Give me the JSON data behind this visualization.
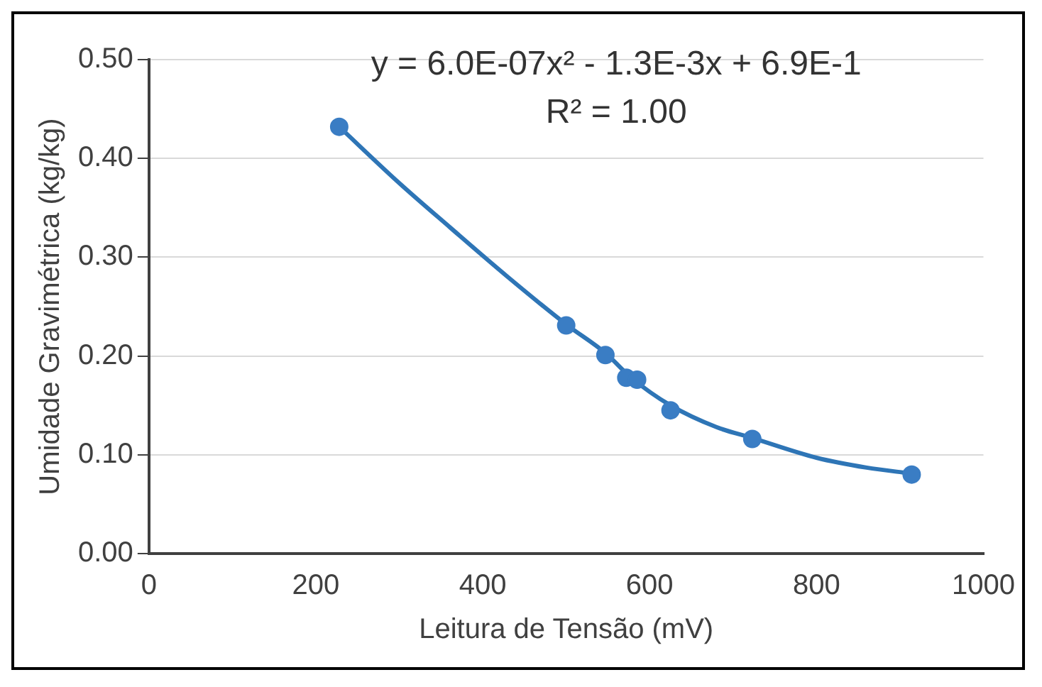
{
  "chart_data": {
    "type": "scatter",
    "xlabel": "Leitura de Tensão (mV)",
    "ylabel": "Umidade Gravimétrica (kg/kg)",
    "xlim": [
      0,
      1000
    ],
    "xticks": [
      0,
      200,
      400,
      600,
      800,
      1000
    ],
    "ylim": [
      0,
      0.5
    ],
    "yticks": [
      {
        "value": 0,
        "label": "0.00"
      },
      {
        "value": 0.1,
        "label": "0.10"
      },
      {
        "value": 0.2,
        "label": "0.20"
      },
      {
        "value": 0.3,
        "label": "0.30"
      },
      {
        "value": 0.4,
        "label": "0.40"
      },
      {
        "value": 0.5,
        "label": "0.50"
      }
    ],
    "grid": "y",
    "legend": false,
    "marker": "circle",
    "annotations": [
      "y = 6.0E-07x² - 1.3E-3x + 6.9E-1",
      "R² = 1.00"
    ],
    "series": [
      {
        "type": "line",
        "color": "#2e75b6",
        "marker": "none",
        "x": [
          228,
          300,
          361,
          430,
          500,
          547,
          578,
          625,
          680,
          723,
          800,
          860,
          914
        ],
        "values": [
          0.432,
          0.375,
          0.33,
          0.28,
          0.232,
          0.203,
          0.178,
          0.15,
          0.128,
          0.117,
          0.097,
          0.087,
          0.081
        ]
      },
      {
        "color": "#3a7dc4",
        "x": [
          228,
          500,
          547,
          572,
          585,
          625,
          723,
          914
        ],
        "values": [
          0.432,
          0.231,
          0.201,
          0.178,
          0.176,
          0.145,
          0.116,
          0.08
        ]
      }
    ]
  }
}
